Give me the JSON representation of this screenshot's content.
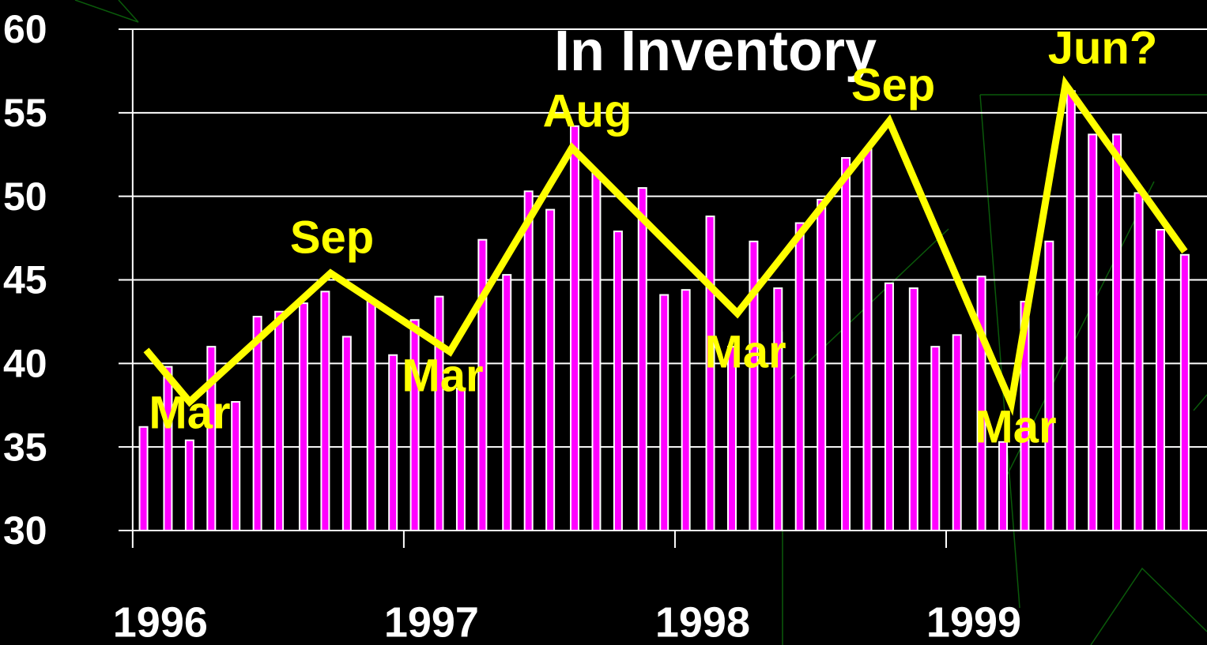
{
  "chart_data": {
    "type": "bar_line",
    "title": "In Inventory",
    "series": [
      {
        "type": "bar",
        "color": "#ff00ff",
        "x": [
          1996.04,
          1996.13,
          1996.21,
          1996.29,
          1996.38,
          1996.46,
          1996.54,
          1996.63,
          1996.71,
          1996.79,
          1996.88,
          1996.96,
          1997.04,
          1997.13,
          1997.21,
          1997.29,
          1997.38,
          1997.46,
          1997.54,
          1997.63,
          1997.71,
          1997.79,
          1997.88,
          1997.96,
          1998.04,
          1998.13,
          1998.21,
          1998.29,
          1998.38,
          1998.46,
          1998.54,
          1998.63,
          1998.71,
          1998.79,
          1998.88,
          1998.96,
          1999.04,
          1999.13,
          1999.21,
          1999.29,
          1999.38,
          1999.46,
          1999.54,
          1999.63,
          1999.71,
          1999.79,
          1999.88
        ],
        "values": [
          36.2,
          39.8,
          35.4,
          41.0,
          37.7,
          42.8,
          43.1,
          43.6,
          44.3,
          41.6,
          43.8,
          40.5,
          42.6,
          44.0,
          38.5,
          47.4,
          45.3,
          50.3,
          49.2,
          54.2,
          51.4,
          47.9,
          50.5,
          44.1,
          44.4,
          48.8,
          41.0,
          47.3,
          44.5,
          48.4,
          49.8,
          52.3,
          52.8,
          44.8,
          44.5,
          41.0,
          41.7,
          45.2,
          35.3,
          43.7,
          47.3,
          56.3,
          53.7,
          53.7,
          50.2,
          48.0,
          46.5
        ]
      },
      {
        "type": "line",
        "color": "#ffff00",
        "x": [
          1996.05,
          1996.21,
          1996.73,
          1997.17,
          1997.62,
          1998.23,
          1998.79,
          1999.24,
          1999.44,
          1999.88
        ],
        "values": [
          40.8,
          37.7,
          45.4,
          40.7,
          52.9,
          43.0,
          54.5,
          37.6,
          56.7,
          46.7
        ]
      }
    ],
    "annotations": [
      "Mar",
      "Sep",
      "Mar",
      "Aug",
      "Mar",
      "Sep",
      "Mar",
      "Jun?"
    ],
    "annotation_color": "#ffff00",
    "xlim": [
      1995.948,
      1999.962
    ],
    "xticks": [
      1996,
      1997,
      1998,
      1999
    ],
    "ylim": [
      30,
      60
    ],
    "yticks": [
      30,
      35,
      40,
      45,
      50,
      55,
      60
    ],
    "grid": true
  }
}
